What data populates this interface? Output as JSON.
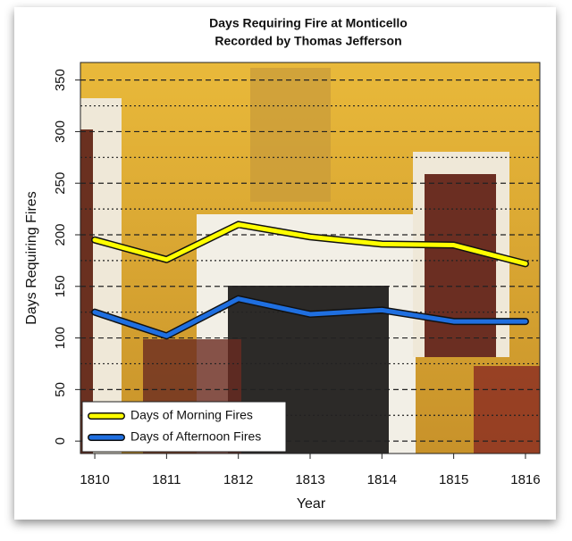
{
  "chart_data": {
    "type": "line",
    "title": "Days Requiring Fire at Monticello",
    "subtitle": "Recorded by Thomas Jefferson",
    "x_label": "Year",
    "y_label": "Days Requiring Fires",
    "x": [
      1810,
      1811,
      1812,
      1813,
      1814,
      1815,
      1816
    ],
    "series": [
      {
        "name": "Days of Morning Fires",
        "color": "#ffff00",
        "values": [
          195,
          176,
          210,
          198,
          191,
          190,
          172
        ]
      },
      {
        "name": "Days of Afternoon Fires",
        "color": "#1f6fe0",
        "values": [
          125,
          102,
          138,
          123,
          127,
          116,
          116
        ]
      }
    ],
    "xlim": [
      1809.8,
      1816.2
    ],
    "xticks": [
      1810,
      1811,
      1812,
      1813,
      1814,
      1815,
      1816
    ],
    "ylim": [
      -12,
      367
    ],
    "yticks": [
      0,
      50,
      100,
      150,
      200,
      250,
      300,
      350
    ],
    "minor_yticks": [
      25,
      75,
      125,
      175,
      225,
      275,
      325
    ],
    "grid": true,
    "legend": "bottom-left"
  }
}
